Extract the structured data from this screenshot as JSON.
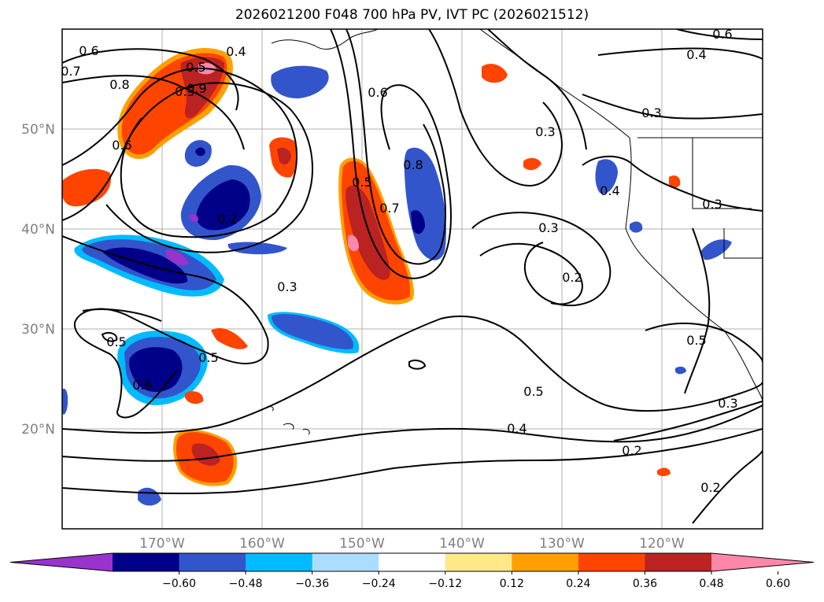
{
  "title": "2026021200 F048 700 hPa PV, IVT PC (2026021512)",
  "map": {
    "lat_labels": [
      "50°N",
      "40°N",
      "30°N",
      "20°N"
    ],
    "lon_labels": [
      "170°W",
      "160°W",
      "150°W",
      "140°W",
      "130°W",
      "120°W"
    ],
    "grid": true
  },
  "colorbar": {
    "orientation": "horizontal",
    "extend": "both",
    "tick_labels": [
      "−0.60",
      "−0.48",
      "−0.36",
      "−0.24",
      "−0.12",
      "0.12",
      "0.24",
      "0.36",
      "0.48",
      "0.60"
    ],
    "colors": [
      "#9933cc",
      "#000088",
      "#3355cc",
      "#00bbff",
      "#aaddff",
      "#ffffff",
      "#ffe888",
      "#ffa000",
      "#ff4400",
      "#bb2222",
      "#ff88aa"
    ]
  },
  "contour_labels": [
    "0.6",
    "0.5",
    "0.4",
    "0.7",
    "0.8",
    "0.6",
    "0.5",
    "0.9",
    "0.4",
    "0.6",
    "0.3",
    "0.3",
    "0.5",
    "0.7",
    "0.8",
    "0.4",
    "0.3",
    "0.6",
    "0.2",
    "0.3",
    "0.2",
    "0.3",
    "0.5",
    "0.5",
    "0.5",
    "0.6",
    "0.5",
    "0.3",
    "0.4",
    "0.2",
    "0.2"
  ]
}
